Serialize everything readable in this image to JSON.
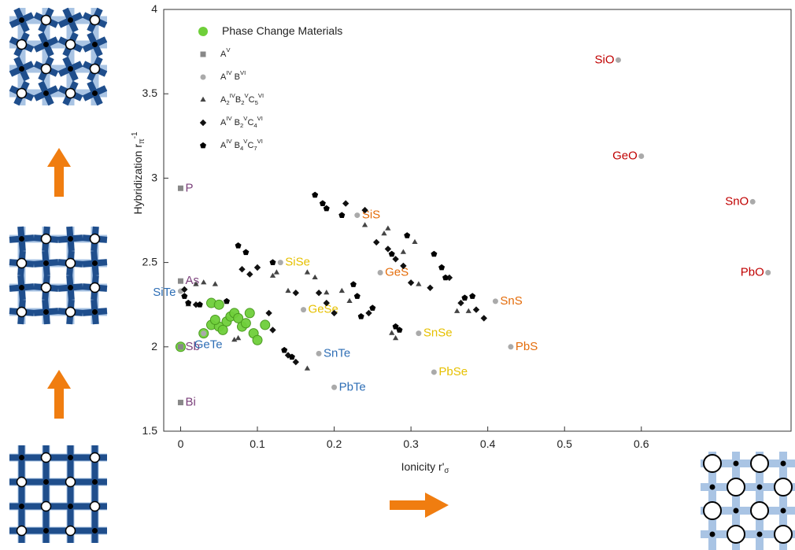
{
  "chart_data": {
    "type": "scatter",
    "xlabel": "Ionicity r'_{σ}",
    "ylabel": "Hybridization r_{π}^{-1}",
    "xlim": [
      -0.022,
      0.795
    ],
    "ylim": [
      1.5,
      4
    ],
    "xticks": [
      0,
      0.1,
      0.2,
      0.3,
      0.4,
      0.5,
      0.6
    ],
    "yticks": [
      1.5,
      2,
      2.5,
      3,
      3.5,
      4
    ],
    "series": [
      {
        "name": "Phase Change Materials",
        "marker": "circle",
        "color": "#6fcf3a",
        "x": [
          0.04,
          0.05,
          0.04,
          0.05,
          0.06,
          0.065,
          0.07,
          0.075,
          0.08,
          0.09,
          0.095,
          0.1,
          0.11,
          0.055,
          0.0,
          0.03,
          0.045,
          0.085
        ],
        "values": [
          2.26,
          2.25,
          2.13,
          2.12,
          2.15,
          2.18,
          2.2,
          2.17,
          2.12,
          2.2,
          2.08,
          2.04,
          2.13,
          2.1,
          2.0,
          2.08,
          2.16,
          2.14
        ]
      },
      {
        "name": "A^{V}",
        "marker": "square",
        "color": "#888888",
        "x": [
          0,
          0,
          0,
          0
        ],
        "values": [
          2.94,
          2.39,
          2.0,
          1.67
        ],
        "labels": [
          "P",
          "As",
          "Sb",
          "Bi"
        ],
        "label_colors": [
          "#7a3f7a",
          "#7a3f7a",
          "#7a3f7a",
          "#7a3f7a"
        ]
      },
      {
        "name": "A^{IV} B^{VI}",
        "marker": "circle",
        "color": "#aaaaaa",
        "x": [
          0.57,
          0.6,
          0.745,
          0.765,
          0.23,
          0.26,
          0.41,
          0.43,
          0.13,
          0.16,
          0.31,
          0.33,
          0.0,
          0.03,
          0.18,
          0.2
        ],
        "values": [
          3.7,
          3.13,
          2.86,
          2.44,
          2.78,
          2.44,
          2.27,
          2.0,
          2.5,
          2.22,
          2.08,
          1.85,
          2.33,
          2.08,
          1.96,
          1.76
        ],
        "labels": [
          "SiO",
          "GeO",
          "SnO",
          "PbO",
          "SiS",
          "GeS",
          "SnS",
          "PbS",
          "SiSe",
          "GeSe",
          "SnSe",
          "PbSe",
          "SiTe",
          "GeTe",
          "SnTe",
          "PbTe"
        ],
        "label_colors": [
          "#c00000",
          "#c00000",
          "#c00000",
          "#c00000",
          "#e46c0a",
          "#e46c0a",
          "#e46c0a",
          "#e46c0a",
          "#e6c000",
          "#e6c000",
          "#e6c000",
          "#e6c000",
          "#2e6eb5",
          "#2e6eb5",
          "#2e6eb5",
          "#2e6eb5"
        ]
      },
      {
        "name": "A_{2}^{IV}B_{2}^{V}C_{5}^{VI}",
        "marker": "triangle",
        "color": "#444444",
        "x": [
          0.02,
          0.03,
          0.01,
          0.045,
          0.07,
          0.075,
          0.12,
          0.125,
          0.14,
          0.165,
          0.175,
          0.19,
          0.21,
          0.22,
          0.24,
          0.265,
          0.29,
          0.305,
          0.31,
          0.275,
          0.28,
          0.36,
          0.375,
          0.165,
          0.27
        ],
        "values": [
          2.37,
          2.38,
          2.25,
          2.37,
          2.04,
          2.05,
          2.42,
          2.44,
          2.33,
          2.44,
          2.41,
          2.32,
          2.33,
          2.27,
          2.72,
          2.67,
          2.56,
          2.62,
          2.37,
          2.08,
          2.05,
          2.21,
          2.21,
          1.87,
          2.7
        ]
      },
      {
        "name": "A^{IV} B_{2}^{V}C_{4}^{VI}",
        "marker": "diamond",
        "color": "#111111",
        "x": [
          0.005,
          0.02,
          0.08,
          0.09,
          0.1,
          0.115,
          0.15,
          0.19,
          0.18,
          0.2,
          0.255,
          0.27,
          0.28,
          0.325,
          0.35,
          0.365,
          0.385,
          0.395,
          0.245,
          0.12,
          0.14,
          0.15,
          0.215,
          0.24,
          0.29,
          0.3
        ],
        "values": [
          2.34,
          2.25,
          2.46,
          2.43,
          2.47,
          2.2,
          2.32,
          2.26,
          2.32,
          2.2,
          2.62,
          2.58,
          2.52,
          2.35,
          2.41,
          2.26,
          2.22,
          2.17,
          2.2,
          2.1,
          1.95,
          1.91,
          2.85,
          2.81,
          2.48,
          2.38
        ]
      },
      {
        "name": "A^{IV} B_{4}^{V}C_{7}^{VI}",
        "marker": "pentagon",
        "color": "#000000",
        "x": [
          0.005,
          0.01,
          0.025,
          0.06,
          0.075,
          0.085,
          0.12,
          0.135,
          0.145,
          0.175,
          0.185,
          0.19,
          0.21,
          0.225,
          0.23,
          0.235,
          0.25,
          0.28,
          0.285,
          0.295,
          0.33,
          0.34,
          0.345,
          0.37,
          0.38,
          0.275
        ],
        "values": [
          2.3,
          2.26,
          2.25,
          2.27,
          2.6,
          2.56,
          2.5,
          1.98,
          1.94,
          2.9,
          2.85,
          2.82,
          2.78,
          2.37,
          2.3,
          2.18,
          2.23,
          2.12,
          2.1,
          2.66,
          2.55,
          2.47,
          2.41,
          2.29,
          2.3,
          2.55
        ]
      }
    ]
  }
}
